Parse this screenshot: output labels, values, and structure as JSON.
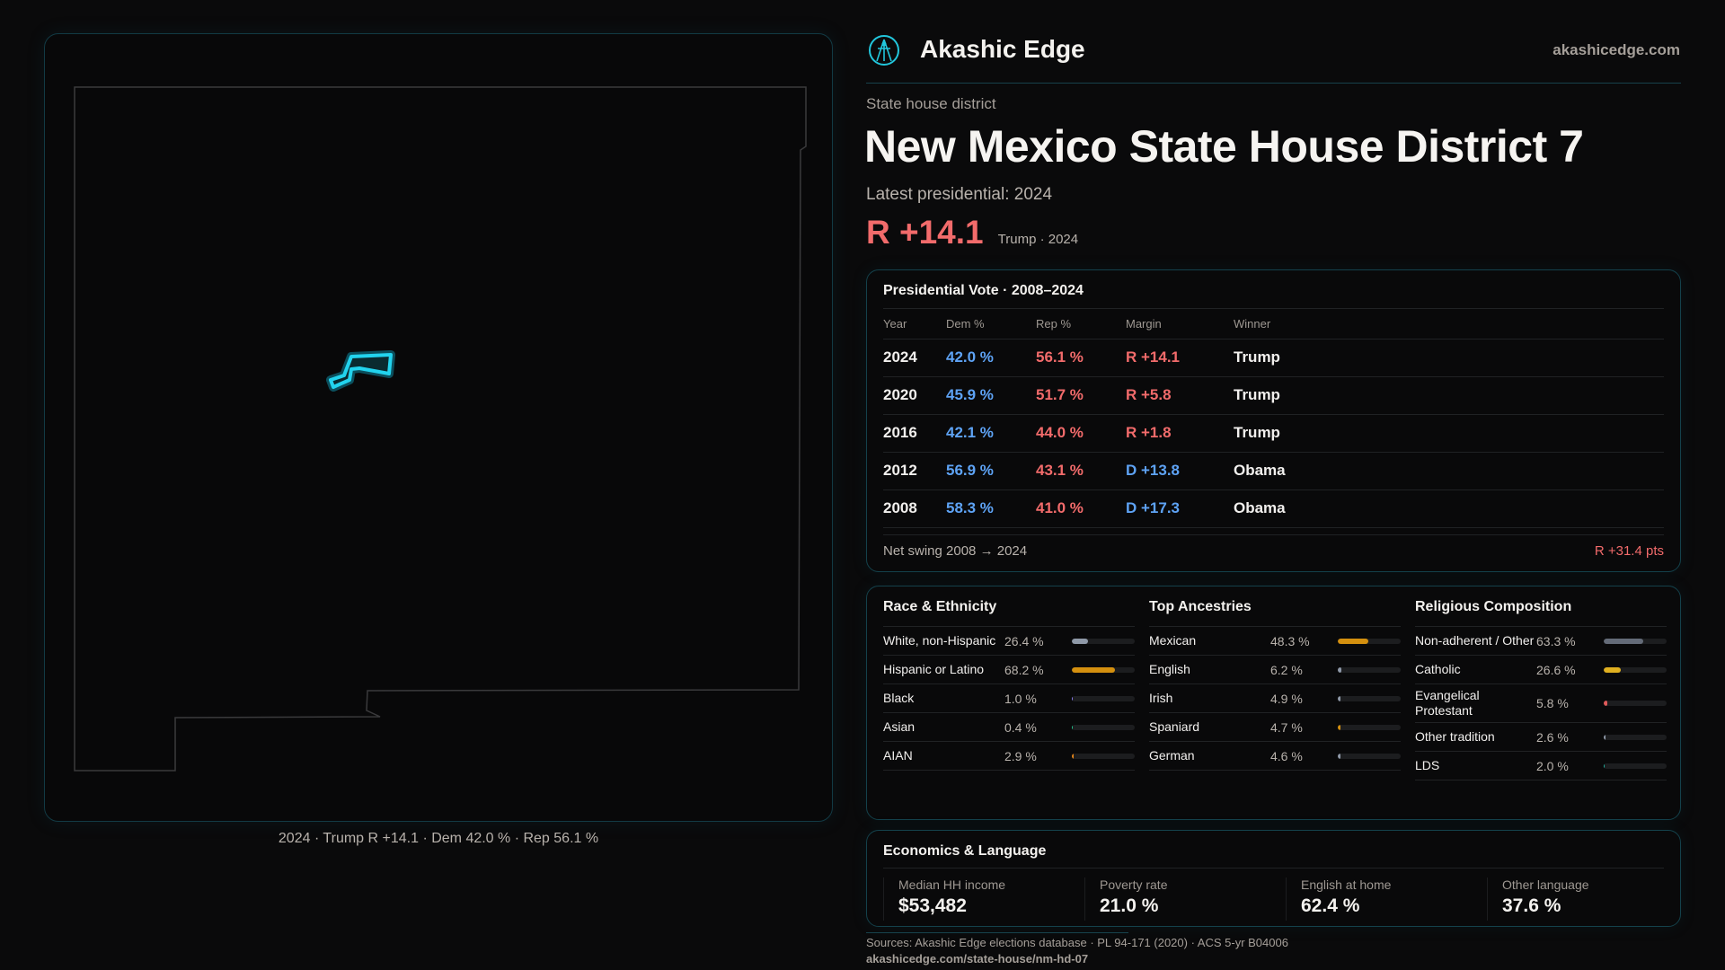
{
  "brand": {
    "name": "Akashic Edge",
    "site": "akashicedge.com",
    "logo_icon": "akashic-logo-icon"
  },
  "map": {
    "caption": "2024 · Trump R +14.1 · Dem 42.0 % · Rep 56.1 %",
    "district_color": "#22d3ee"
  },
  "header": {
    "kicker": "State house district",
    "title": "New Mexico State House District 7",
    "latest": "Latest presidential: 2024",
    "margin": "R +14.1",
    "margin_sub": "Trump · 2024"
  },
  "presidential": {
    "title": "Presidential Vote · 2008–2024",
    "columns": [
      "Year",
      "Dem %",
      "Rep %",
      "Margin",
      "Winner"
    ],
    "rows": [
      {
        "year": "2024",
        "dem": "42.0 %",
        "rep": "56.1 %",
        "margin": "R +14.1",
        "party": "rep",
        "winner": "Trump"
      },
      {
        "year": "2020",
        "dem": "45.9 %",
        "rep": "51.7 %",
        "margin": "R +5.8",
        "party": "rep",
        "winner": "Trump"
      },
      {
        "year": "2016",
        "dem": "42.1 %",
        "rep": "44.0 %",
        "margin": "R +1.8",
        "party": "rep",
        "winner": "Trump"
      },
      {
        "year": "2012",
        "dem": "56.9 %",
        "rep": "43.1 %",
        "margin": "D +13.8",
        "party": "dem",
        "winner": "Obama"
      },
      {
        "year": "2008",
        "dem": "58.3 %",
        "rep": "41.0 %",
        "margin": "D +17.3",
        "party": "dem",
        "winner": "Obama"
      }
    ],
    "swing_label": "Net swing 2008 → 2024",
    "swing_value": "R +31.4 pts"
  },
  "demographics": [
    {
      "title": "Race & Ethnicity",
      "items": [
        {
          "label": "White, non-Hispanic",
          "value": "26.4 %",
          "pct": 26.4,
          "color": "#8f99a8"
        },
        {
          "label": "Hispanic or Latino",
          "value": "68.2 %",
          "pct": 68.2,
          "color": "#d4900f"
        },
        {
          "label": "Black",
          "value": "1.0 %",
          "pct": 1.0,
          "color": "#8b7cf0"
        },
        {
          "label": "Asian",
          "value": "0.4 %",
          "pct": 0.4,
          "color": "#22c08a"
        },
        {
          "label": "AIAN",
          "value": "2.9 %",
          "pct": 2.9,
          "color": "#e0831a"
        }
      ]
    },
    {
      "title": "Top Ancestries",
      "items": [
        {
          "label": "Mexican",
          "value": "48.3 %",
          "pct": 48.3,
          "color": "#d4900f"
        },
        {
          "label": "English",
          "value": "6.2 %",
          "pct": 6.2,
          "color": "#8f99a8"
        },
        {
          "label": "Irish",
          "value": "4.9 %",
          "pct": 4.9,
          "color": "#8f99a8"
        },
        {
          "label": "Spaniard",
          "value": "4.7 %",
          "pct": 4.7,
          "color": "#d4900f"
        },
        {
          "label": "German",
          "value": "4.6 %",
          "pct": 4.6,
          "color": "#8f99a8"
        }
      ]
    },
    {
      "title": "Religious Composition",
      "items": [
        {
          "label": "Non-adherent / Other",
          "value": "63.3 %",
          "pct": 63.3,
          "color": "#646b78"
        },
        {
          "label": "Catholic",
          "value": "26.6 %",
          "pct": 26.6,
          "color": "#e0b020"
        },
        {
          "label": "Evangelical Protestant",
          "value": "5.8 %",
          "pct": 5.8,
          "color": "#e05a5a"
        },
        {
          "label": "Other tradition",
          "value": "2.6 %",
          "pct": 2.6,
          "color": "#8f99a8"
        },
        {
          "label": "LDS",
          "value": "2.0 %",
          "pct": 2.0,
          "color": "#22b0a0"
        }
      ]
    }
  ],
  "economics": {
    "title": "Economics & Language",
    "stats": [
      {
        "label": "Median HH income",
        "value": "$53,482"
      },
      {
        "label": "Poverty rate",
        "value": "21.0 %"
      },
      {
        "label": "English at home",
        "value": "62.4 %"
      },
      {
        "label": "Other language",
        "value": "37.6 %"
      }
    ]
  },
  "footer": {
    "sources": "Sources: Akashic Edge elections database · PL 94-171 (2020) · ACS 5-yr B04006",
    "url": "akashicedge.com/state-house/nm-hd-07"
  }
}
